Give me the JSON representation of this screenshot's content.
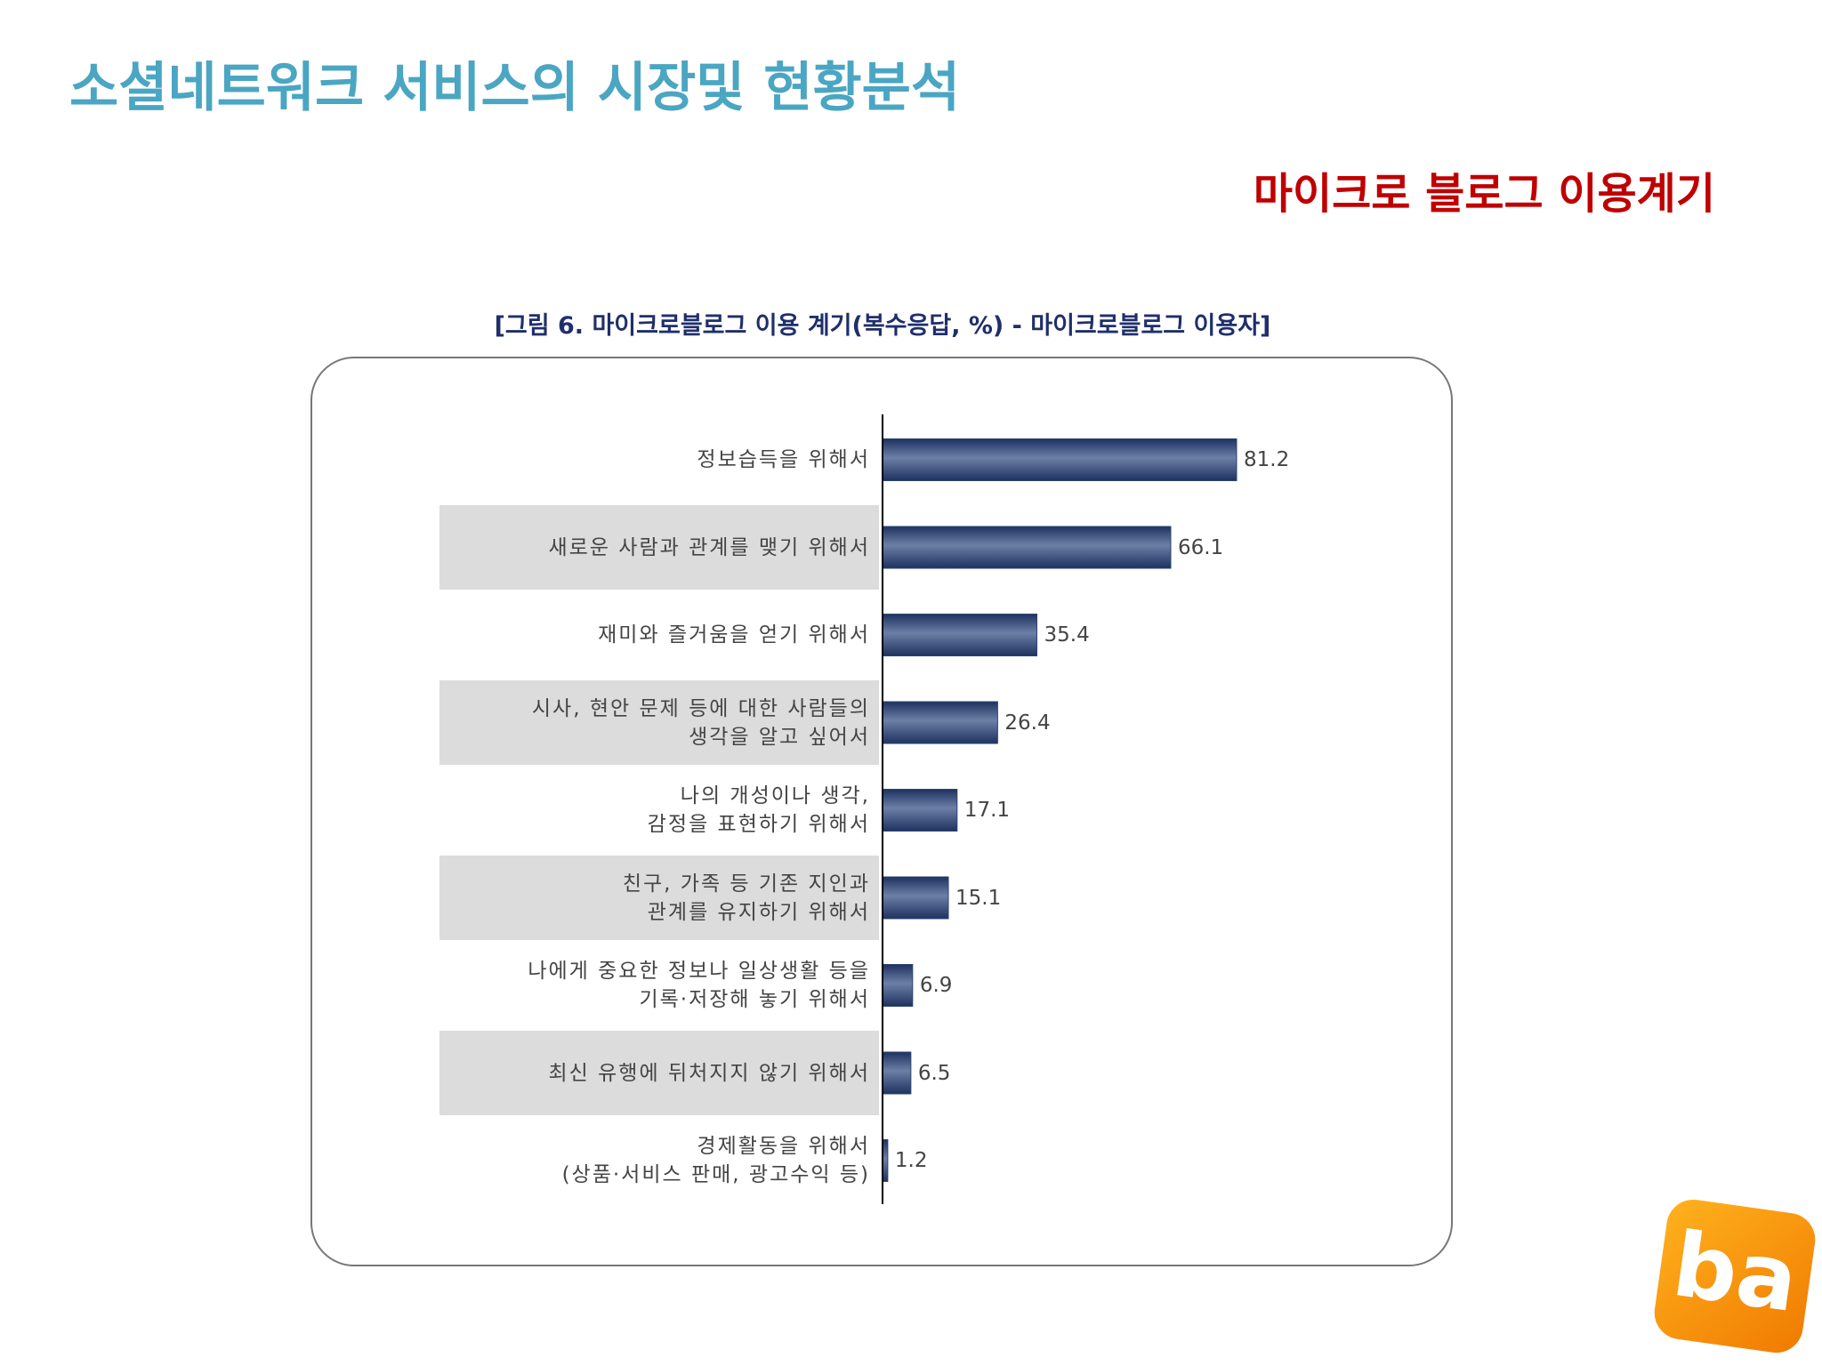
{
  "slide": {
    "title": "소셜네트워크 서비스의 시장및 현황분석",
    "subtitle": "마이크로 블로그 이용계기",
    "logo": "ba"
  },
  "chart_data": {
    "type": "hbar",
    "title": "[그림 6. 마이크로블로그 이용 계기(복수응답, %) - 마이크로블로그 이용자]",
    "categories": [
      "정보습득을 위해서",
      "새로운 사람과 관계를 맺기 위해서",
      "재미와 즐거움을 얻기 위해서",
      "시사, 현안 문제 등에 대한 사람들의\n생각을 알고 싶어서",
      "나의 개성이나 생각,\n감정을 표현하기 위해서",
      "친구, 가족 등 기존 지인과\n관계를 유지하기 위해서",
      "나에게 중요한 정보나 일상생활 등을\n기록·저장해 놓기 위해서",
      "최신 유행에 뒤처지지 않기 위해서",
      "경제활동을 위해서\n(상품·서비스 판매, 광고수익 등)"
    ],
    "values": [
      81.2,
      66.1,
      35.4,
      26.4,
      17.1,
      15.1,
      6.9,
      6.5,
      1.2
    ],
    "color": "#2c4570"
  }
}
